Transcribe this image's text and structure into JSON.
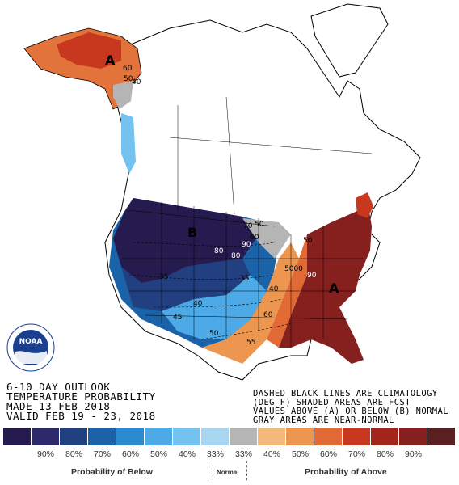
{
  "outlook": {
    "line1": "6-10 DAY OUTLOOK",
    "line2": "TEMPERATURE PROBABILITY",
    "line3": "MADE  13 FEB 2018",
    "line4": "VALID  FEB 19 - 23, 2018"
  },
  "notes": {
    "line1": "DASHED BLACK LINES ARE CLIMATOLOGY",
    "line2": "(DEG F) SHADED AREAS ARE FCST",
    "line3": "VALUES ABOVE (A) OR BELOW (B) NORMAL",
    "line4": "GRAY AREAS ARE NEAR-NORMAL"
  },
  "map_labels": {
    "alaska_A": "A",
    "alaska_60": "60",
    "alaska_50": "50",
    "alaska_40": "40",
    "west_B": "B",
    "east_A": "A",
    "c_90": "90",
    "c_80": "80",
    "c_80b": "80",
    "c_70": "70",
    "c_60": "60",
    "c_50": "50",
    "c_50b": "50",
    "c_35": "35",
    "c_40": "40",
    "c_45": "45",
    "c_50c": "50",
    "c_55": "55",
    "c_60b": "60",
    "c_40b": "40",
    "c_35b": "35",
    "c_90b": "90",
    "c_5000": "5000"
  },
  "legend": {
    "colors": [
      "#261b4e",
      "#2d2a6b",
      "#223f80",
      "#1b63a8",
      "#2c8ad0",
      "#4eaae6",
      "#74c2ef",
      "#a8d6f0",
      "#b5b5b5",
      "#f2b97a",
      "#ec9650",
      "#e26a35",
      "#c7381f",
      "#a3241b",
      "#85201f",
      "#5a2021"
    ],
    "ticks": [
      "90%",
      "80%",
      "70%",
      "60%",
      "50%",
      "40%",
      "33%",
      "33%",
      "40%",
      "50%",
      "60%",
      "70%",
      "80%",
      "90%"
    ],
    "below_caption": "Probability of Below",
    "normal_caption": "Normal",
    "above_caption": "Probability of Above"
  },
  "logo": {
    "text": "NOAA"
  }
}
